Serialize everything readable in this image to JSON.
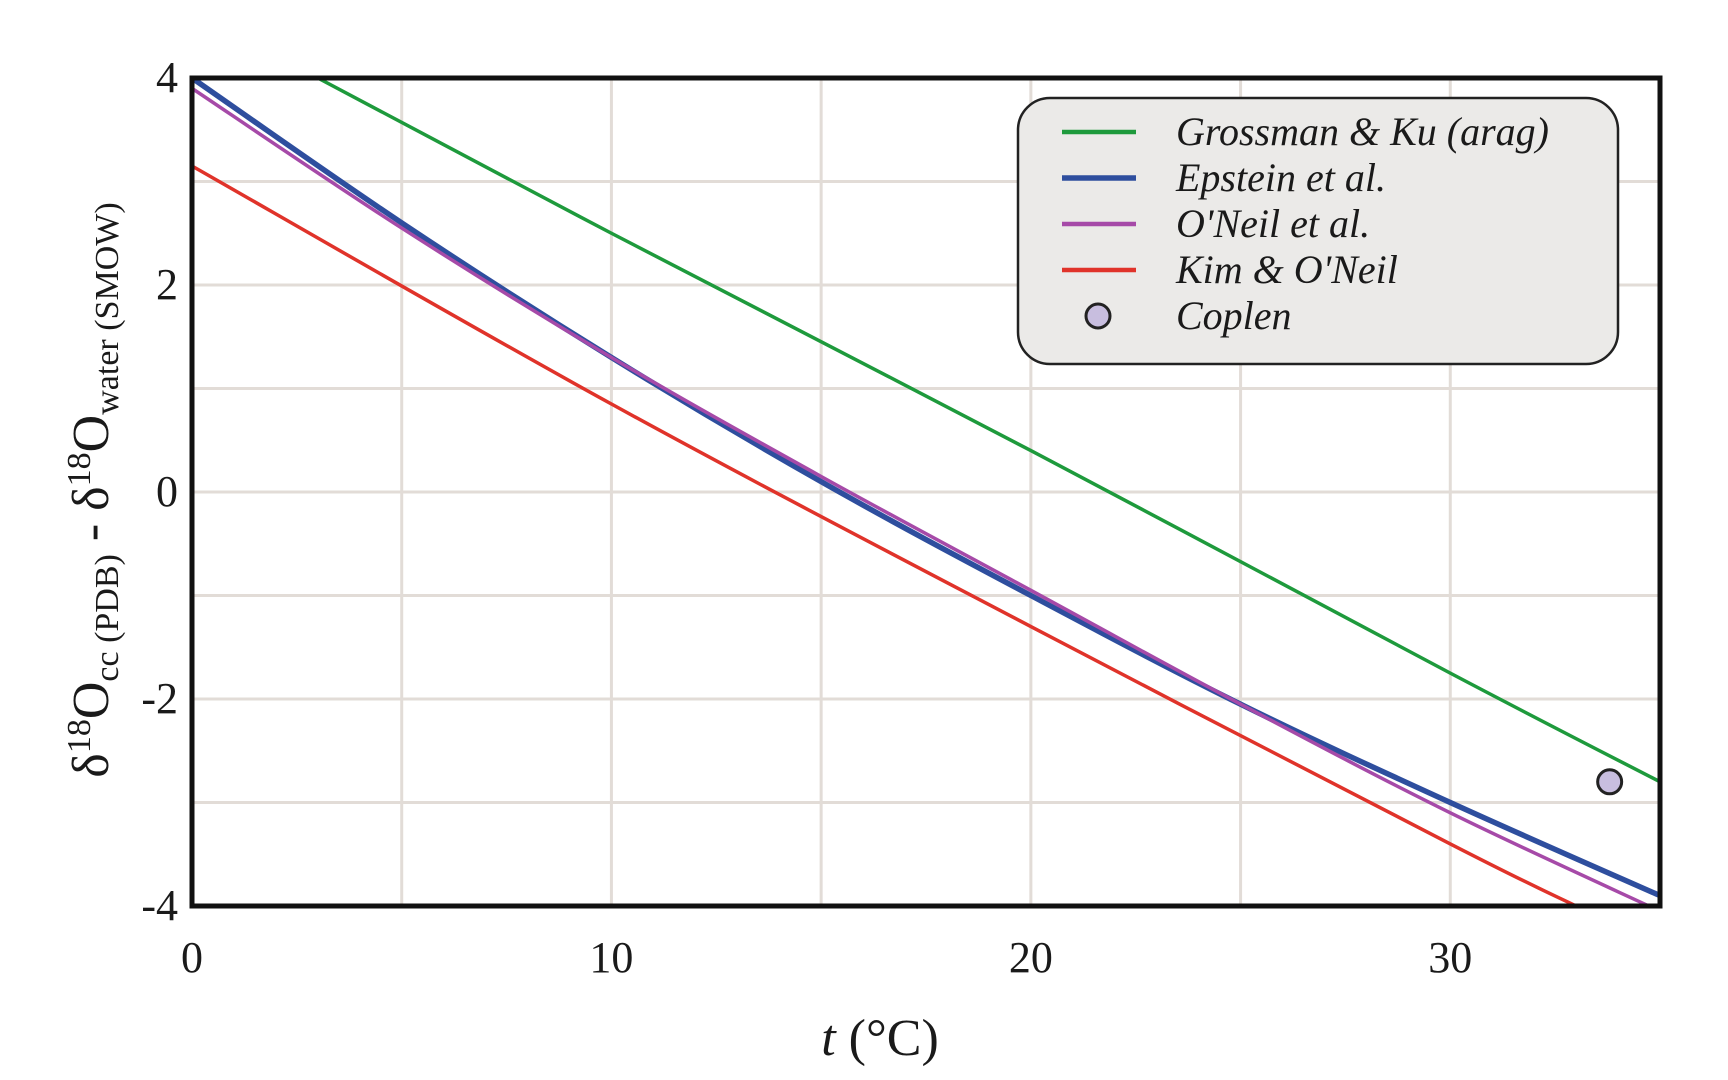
{
  "chart_data": {
    "type": "line",
    "xlabel": {
      "var": "t",
      "unit": " (°C)"
    },
    "ylabel": {
      "part1": "δ",
      "sup1": "18",
      "base1": "O",
      "sub1": "cc (PDB)",
      "mid": " - δ",
      "sup2": "18",
      "base2": "O",
      "sub2": "water (SMOW)"
    },
    "xlim": [
      0,
      35
    ],
    "ylim": [
      -4,
      4
    ],
    "xticks": [
      "0",
      "10",
      "20",
      "30"
    ],
    "xtick_values": [
      0,
      10,
      20,
      30
    ],
    "yticks": [
      "4",
      "2",
      "0",
      "-2",
      "-4"
    ],
    "ytick_values": [
      4,
      2,
      0,
      -2,
      -4
    ],
    "grid": true,
    "grid_x_values": [
      5,
      10,
      15,
      20,
      25,
      30
    ],
    "grid_y_values": [
      3,
      2,
      1,
      0,
      -1,
      -2,
      -3
    ],
    "legend_position": "top-right",
    "series": [
      {
        "name": "Grossman & Ku (arag)",
        "color": "#1e9a3c",
        "marker": "line",
        "x": [
          3,
          10,
          20,
          30,
          35
        ],
        "y": [
          4.0,
          2.5,
          0.4,
          -1.75,
          -2.8
        ]
      },
      {
        "name": "Epstein et al.",
        "color": "#2e4e9e",
        "marker": "line",
        "x": [
          0,
          5,
          10,
          15,
          20,
          25,
          30,
          35
        ],
        "y": [
          4.0,
          2.6,
          1.3,
          0.1,
          -1.0,
          -2.05,
          -3.0,
          -3.9
        ]
      },
      {
        "name": "O'Neil et al.",
        "color": "#a64aa8",
        "marker": "line",
        "x": [
          0,
          5,
          10,
          15,
          20,
          25,
          30,
          35
        ],
        "y": [
          3.9,
          2.55,
          1.3,
          0.15,
          -0.95,
          -2.05,
          -3.1,
          -4.05
        ]
      },
      {
        "name": "Kim & O'Neil",
        "color": "#e0332a",
        "marker": "line",
        "x": [
          0,
          10,
          20,
          30,
          33
        ],
        "y": [
          3.15,
          0.85,
          -1.3,
          -3.4,
          -4.0
        ]
      },
      {
        "name": "Coplen",
        "color": "#c8bedf",
        "marker": "circle",
        "x": [
          33.8
        ],
        "y": [
          -2.8
        ]
      }
    ]
  }
}
